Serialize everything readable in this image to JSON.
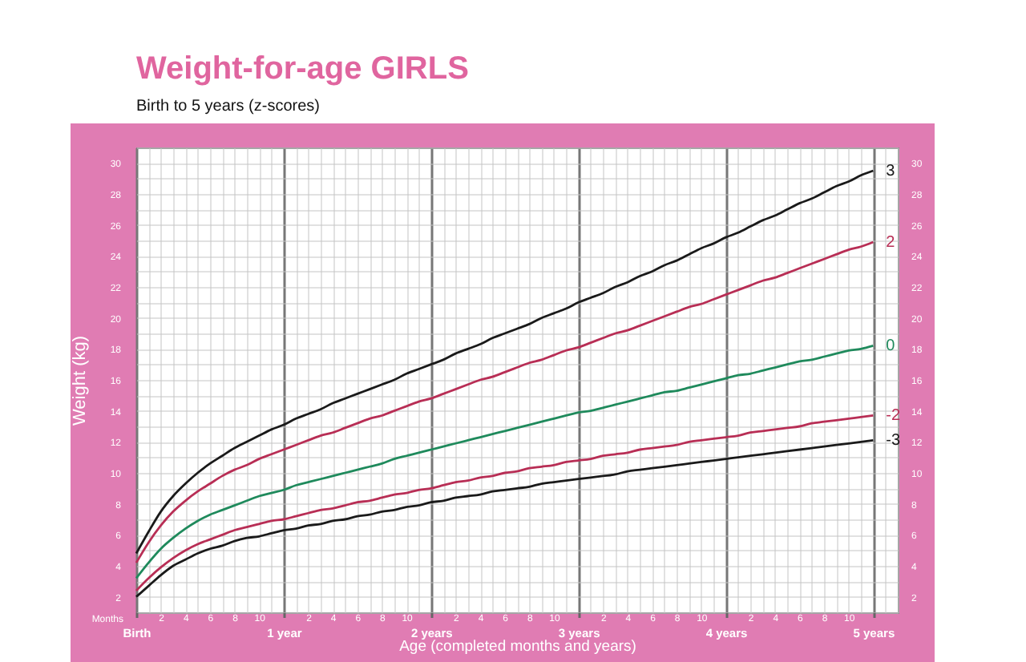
{
  "chart_data": {
    "type": "line",
    "title": "Weight-for-age GIRLS",
    "subtitle": "Birth to 5 years (z-scores)",
    "xlabel": "Age (completed months and years)",
    "ylabel": "Weight (kg)",
    "annotations": [
      "Months"
    ],
    "categories": [
      "Birth",
      null,
      "2",
      null,
      "4",
      null,
      "6",
      null,
      "8",
      null,
      "10",
      null,
      "1 year",
      null,
      "2",
      null,
      "4",
      null,
      "6",
      null,
      "8",
      null,
      "10",
      null,
      "2 years",
      null,
      "2",
      null,
      "4",
      null,
      "6",
      null,
      "8",
      null,
      "10",
      null,
      "3 years",
      null,
      "2",
      null,
      "4",
      null,
      "6",
      null,
      "8",
      null,
      "10",
      null,
      "4 years",
      null,
      "2",
      null,
      "4",
      null,
      "6",
      null,
      "8",
      null,
      "10",
      null,
      "5 years",
      null,
      null
    ],
    "series": [
      {
        "name": "3",
        "color": "#1a1a1a",
        "values": [
          4.8,
          6.2,
          7.5,
          8.5,
          9.3,
          10.0,
          10.6,
          11.1,
          11.6,
          12.0,
          12.4,
          12.8,
          13.1,
          13.5,
          13.8,
          14.1,
          14.5,
          14.8,
          15.1,
          15.4,
          15.7,
          16.0,
          16.4,
          16.7,
          17.0,
          17.3,
          17.7,
          18.0,
          18.3,
          18.7,
          19.0,
          19.3,
          19.6,
          20.0,
          20.3,
          20.6,
          21.0,
          21.3,
          21.6,
          22.0,
          22.3,
          22.7,
          23.0,
          23.4,
          23.7,
          24.1,
          24.5,
          24.8,
          25.2,
          25.5,
          25.9,
          26.3,
          26.6,
          27.0,
          27.4,
          27.7,
          28.1,
          28.5,
          28.8,
          29.2,
          29.5,
          null,
          null
        ]
      },
      {
        "name": "2",
        "color": "#b82e55",
        "values": [
          4.2,
          5.5,
          6.6,
          7.5,
          8.2,
          8.8,
          9.3,
          9.8,
          10.2,
          10.5,
          10.9,
          11.2,
          11.5,
          11.8,
          12.1,
          12.4,
          12.6,
          12.9,
          13.2,
          13.5,
          13.7,
          14.0,
          14.3,
          14.6,
          14.8,
          15.1,
          15.4,
          15.7,
          16.0,
          16.2,
          16.5,
          16.8,
          17.1,
          17.3,
          17.6,
          17.9,
          18.1,
          18.4,
          18.7,
          19.0,
          19.2,
          19.5,
          19.8,
          20.1,
          20.4,
          20.7,
          20.9,
          21.2,
          21.5,
          21.8,
          22.1,
          22.4,
          22.6,
          22.9,
          23.2,
          23.5,
          23.8,
          24.1,
          24.4,
          24.6,
          24.9,
          null,
          null
        ]
      },
      {
        "name": "0",
        "color": "#1f8a5c",
        "values": [
          3.2,
          4.2,
          5.1,
          5.8,
          6.4,
          6.9,
          7.3,
          7.6,
          7.9,
          8.2,
          8.5,
          8.7,
          8.9,
          9.2,
          9.4,
          9.6,
          9.8,
          10.0,
          10.2,
          10.4,
          10.6,
          10.9,
          11.1,
          11.3,
          11.5,
          11.7,
          11.9,
          12.1,
          12.3,
          12.5,
          12.7,
          12.9,
          13.1,
          13.3,
          13.5,
          13.7,
          13.9,
          14.0,
          14.2,
          14.4,
          14.6,
          14.8,
          15.0,
          15.2,
          15.3,
          15.5,
          15.7,
          15.9,
          16.1,
          16.3,
          16.4,
          16.6,
          16.8,
          17.0,
          17.2,
          17.3,
          17.5,
          17.7,
          17.9,
          18.0,
          18.2,
          null,
          null
        ]
      },
      {
        "name": "-2",
        "color": "#b82e55",
        "values": [
          2.4,
          3.2,
          3.9,
          4.5,
          5.0,
          5.4,
          5.7,
          6.0,
          6.3,
          6.5,
          6.7,
          6.9,
          7.0,
          7.2,
          7.4,
          7.6,
          7.7,
          7.9,
          8.1,
          8.2,
          8.4,
          8.6,
          8.7,
          8.9,
          9.0,
          9.2,
          9.4,
          9.5,
          9.7,
          9.8,
          10.0,
          10.1,
          10.3,
          10.4,
          10.5,
          10.7,
          10.8,
          10.9,
          11.1,
          11.2,
          11.3,
          11.5,
          11.6,
          11.7,
          11.8,
          12.0,
          12.1,
          12.2,
          12.3,
          12.4,
          12.6,
          12.7,
          12.8,
          12.9,
          13.0,
          13.2,
          13.3,
          13.4,
          13.5,
          13.6,
          13.7,
          null,
          null
        ]
      },
      {
        "name": "-3",
        "color": "#1a1a1a",
        "values": [
          2.0,
          2.7,
          3.4,
          4.0,
          4.4,
          4.8,
          5.1,
          5.3,
          5.6,
          5.8,
          5.9,
          6.1,
          6.3,
          6.4,
          6.6,
          6.7,
          6.9,
          7.0,
          7.2,
          7.3,
          7.5,
          7.6,
          7.8,
          7.9,
          8.1,
          8.2,
          8.4,
          8.5,
          8.6,
          8.8,
          8.9,
          9.0,
          9.1,
          9.3,
          9.4,
          9.5,
          9.6,
          9.7,
          9.8,
          9.9,
          10.1,
          10.2,
          10.3,
          10.4,
          10.5,
          10.6,
          10.7,
          10.8,
          10.9,
          11.0,
          11.1,
          11.2,
          11.3,
          11.4,
          11.5,
          11.6,
          11.7,
          11.8,
          11.9,
          12.0,
          12.1,
          null,
          null
        ]
      }
    ],
    "ylim": [
      1,
      31
    ],
    "yticks": [
      {
        "value": 1,
        "label": null
      },
      2,
      {
        "value": 3,
        "label": null
      },
      4,
      {
        "value": 5,
        "label": null
      },
      6,
      {
        "value": 7,
        "label": null
      },
      8,
      {
        "value": 9,
        "label": null
      },
      10,
      {
        "value": 11,
        "label": null
      },
      12,
      {
        "value": 13,
        "label": null
      },
      14,
      {
        "value": 15,
        "label": null
      },
      16,
      {
        "value": 17,
        "label": null
      },
      18,
      {
        "value": 19,
        "label": null
      },
      20,
      {
        "value": 21,
        "label": null
      },
      22,
      {
        "value": 23,
        "label": null
      },
      24,
      {
        "value": 25,
        "label": null
      },
      26,
      {
        "value": 27,
        "label": null
      },
      28,
      {
        "value": 29,
        "label": null
      },
      30,
      {
        "value": 31,
        "label": null
      }
    ],
    "y2lim": [
      1,
      31
    ],
    "y2ticks": [
      2,
      4,
      6,
      8,
      10,
      12,
      14,
      16,
      18,
      20,
      22,
      24,
      26,
      28,
      30
    ],
    "grid": true,
    "legend": false,
    "marker": "none",
    "line_style": "solid"
  }
}
